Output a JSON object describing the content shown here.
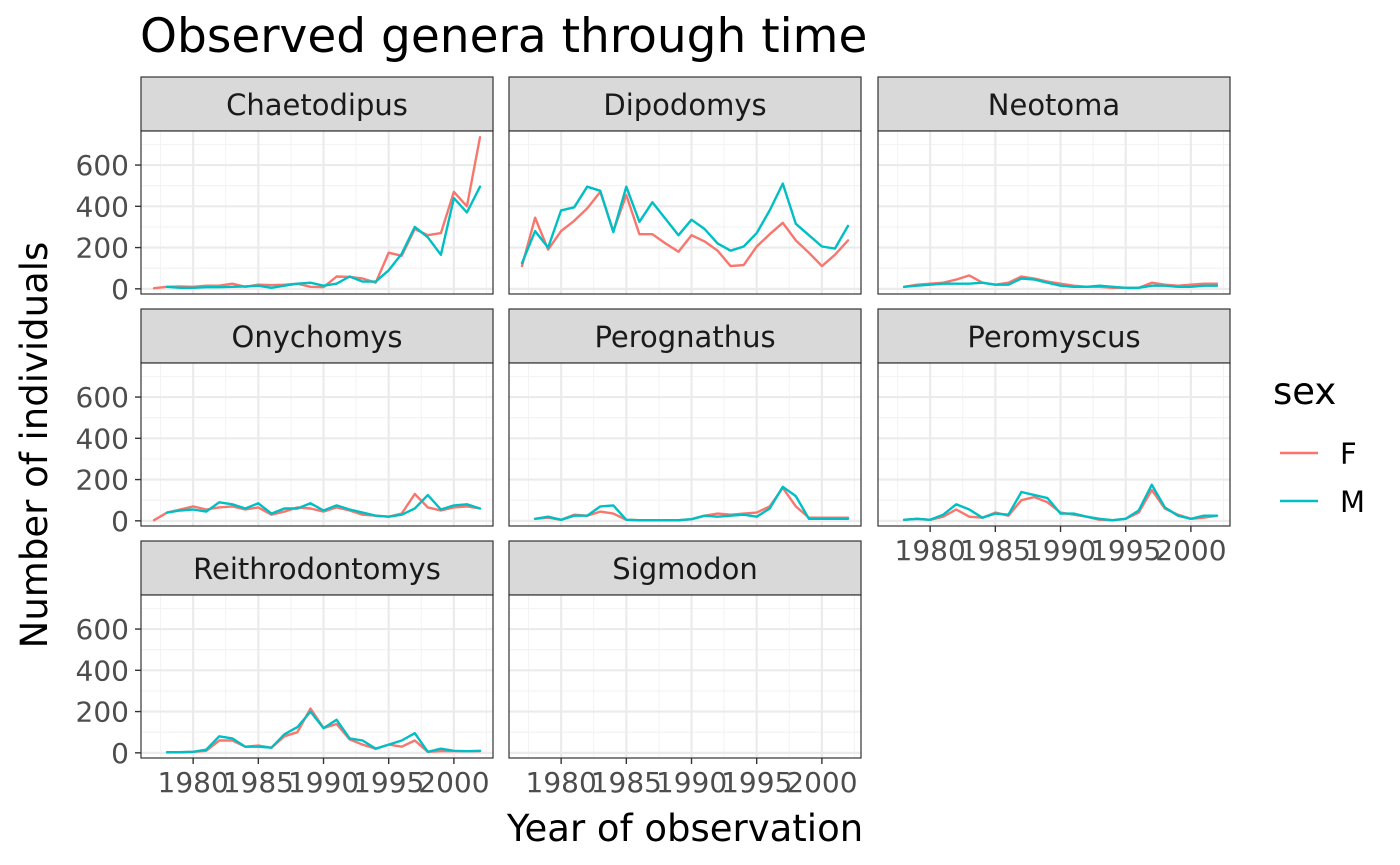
{
  "chart_data": {
    "type": "line",
    "title": "Observed genera through time",
    "xlabel": "Year of observation",
    "ylabel": "Number of individuals",
    "xlim": [
      1976,
      2003
    ],
    "ylim": [
      -25,
      765
    ],
    "x_ticks": [
      1980,
      1985,
      1990,
      1995,
      2000
    ],
    "y_ticks": [
      0,
      200,
      400,
      600
    ],
    "grid": true,
    "legend": {
      "title": "sex",
      "placement": "right",
      "entries": [
        {
          "label": "F",
          "color": "#F8766D"
        },
        {
          "label": "M",
          "color": "#00BFC4"
        }
      ]
    },
    "x": [
      1977,
      1978,
      1979,
      1980,
      1981,
      1982,
      1983,
      1984,
      1985,
      1986,
      1987,
      1988,
      1989,
      1990,
      1991,
      1992,
      1993,
      1994,
      1995,
      1996,
      1997,
      1998,
      1999,
      2000,
      2001,
      2002
    ],
    "panels": [
      {
        "name": "Chaetodipus",
        "series": [
          {
            "name": "F",
            "values": [
              3,
              10,
              12,
              10,
              15,
              15,
              25,
              10,
              20,
              18,
              20,
              25,
              10,
              8,
              60,
              58,
              50,
              30,
              175,
              160,
              290,
              260,
              270,
              470,
              400,
              735
            ]
          },
          {
            "name": "M",
            "values": [
              null,
              10,
              5,
              5,
              8,
              8,
              10,
              12,
              15,
              5,
              15,
              25,
              30,
              15,
              25,
              60,
              35,
              35,
              90,
              170,
              300,
              250,
              165,
              440,
              370,
              495
            ]
          }
        ]
      },
      {
        "name": "Dipodomys",
        "series": [
          {
            "name": "F",
            "values": [
              110,
              345,
              190,
              280,
              330,
              390,
              470,
              280,
              455,
              265,
              265,
              220,
              180,
              260,
              230,
              185,
              110,
              115,
              205,
              265,
              320,
              235,
              175,
              110,
              165,
              235
            ]
          },
          {
            "name": "M",
            "values": [
              125,
              280,
              200,
              380,
              395,
              495,
              475,
              275,
              495,
              325,
              420,
              340,
              260,
              335,
              290,
              220,
              185,
              205,
              270,
              380,
              510,
              315,
              260,
              205,
              195,
              305
            ]
          }
        ]
      },
      {
        "name": "Neotoma",
        "series": [
          {
            "name": "F",
            "values": [
              null,
              10,
              20,
              25,
              30,
              45,
              65,
              30,
              20,
              30,
              60,
              50,
              35,
              25,
              15,
              10,
              10,
              5,
              5,
              5,
              30,
              20,
              15,
              20,
              25,
              25
            ]
          },
          {
            "name": "M",
            "values": [
              null,
              10,
              15,
              20,
              25,
              25,
              25,
              30,
              20,
              20,
              50,
              45,
              30,
              15,
              10,
              10,
              15,
              10,
              5,
              5,
              15,
              15,
              10,
              10,
              15,
              15
            ]
          }
        ]
      },
      {
        "name": "Onychomys",
        "series": [
          {
            "name": "F",
            "values": [
              3,
              40,
              55,
              70,
              55,
              65,
              70,
              55,
              65,
              30,
              45,
              65,
              60,
              45,
              65,
              50,
              30,
              25,
              20,
              35,
              130,
              65,
              50,
              65,
              70,
              60
            ]
          },
          {
            "name": "M",
            "values": [
              null,
              40,
              50,
              55,
              45,
              90,
              80,
              60,
              85,
              35,
              60,
              60,
              85,
              50,
              75,
              55,
              40,
              25,
              20,
              30,
              60,
              125,
              55,
              75,
              80,
              60
            ]
          }
        ]
      },
      {
        "name": "Perognathus",
        "series": [
          {
            "name": "F",
            "values": [
              null,
              10,
              15,
              5,
              30,
              25,
              45,
              35,
              5,
              3,
              3,
              3,
              3,
              8,
              25,
              35,
              30,
              35,
              40,
              70,
              160,
              70,
              15,
              15,
              15,
              15
            ]
          },
          {
            "name": "M",
            "values": [
              null,
              10,
              20,
              5,
              25,
              25,
              70,
              75,
              5,
              3,
              3,
              3,
              3,
              8,
              25,
              20,
              25,
              30,
              20,
              60,
              165,
              120,
              10,
              10,
              10,
              10
            ]
          }
        ]
      },
      {
        "name": "Peromyscus",
        "series": [
          {
            "name": "F",
            "values": [
              null,
              5,
              10,
              5,
              20,
              55,
              20,
              15,
              40,
              25,
              100,
              115,
              90,
              40,
              30,
              20,
              5,
              3,
              10,
              40,
              150,
              60,
              30,
              10,
              15,
              25
            ]
          },
          {
            "name": "M",
            "values": [
              null,
              5,
              10,
              5,
              30,
              80,
              55,
              15,
              35,
              30,
              140,
              125,
              110,
              35,
              35,
              20,
              10,
              3,
              10,
              50,
              175,
              65,
              25,
              10,
              25,
              25
            ]
          }
        ]
      },
      {
        "name": "Reithrodontomys",
        "series": [
          {
            "name": "F",
            "values": [
              null,
              3,
              3,
              5,
              10,
              60,
              60,
              30,
              35,
              25,
              80,
              100,
              215,
              120,
              140,
              65,
              40,
              20,
              40,
              30,
              60,
              5,
              8,
              8,
              8,
              8
            ]
          },
          {
            "name": "M",
            "values": [
              null,
              3,
              3,
              5,
              15,
              80,
              70,
              30,
              30,
              25,
              90,
              125,
              200,
              120,
              160,
              70,
              60,
              20,
              40,
              60,
              95,
              5,
              20,
              10,
              8,
              10
            ]
          }
        ]
      },
      {
        "name": "Sigmodon",
        "series": [
          {
            "name": "F",
            "values": [
              null,
              null,
              null,
              null,
              null,
              null,
              null,
              null,
              null,
              null,
              null,
              null,
              null,
              null,
              null,
              null,
              null,
              null,
              null,
              null,
              null,
              null,
              null,
              null,
              null,
              null
            ]
          },
          {
            "name": "M",
            "values": [
              null,
              null,
              null,
              null,
              null,
              null,
              null,
              null,
              null,
              null,
              null,
              null,
              null,
              null,
              null,
              null,
              null,
              null,
              null,
              null,
              null,
              null,
              null,
              null,
              null,
              null
            ]
          }
        ]
      }
    ]
  }
}
